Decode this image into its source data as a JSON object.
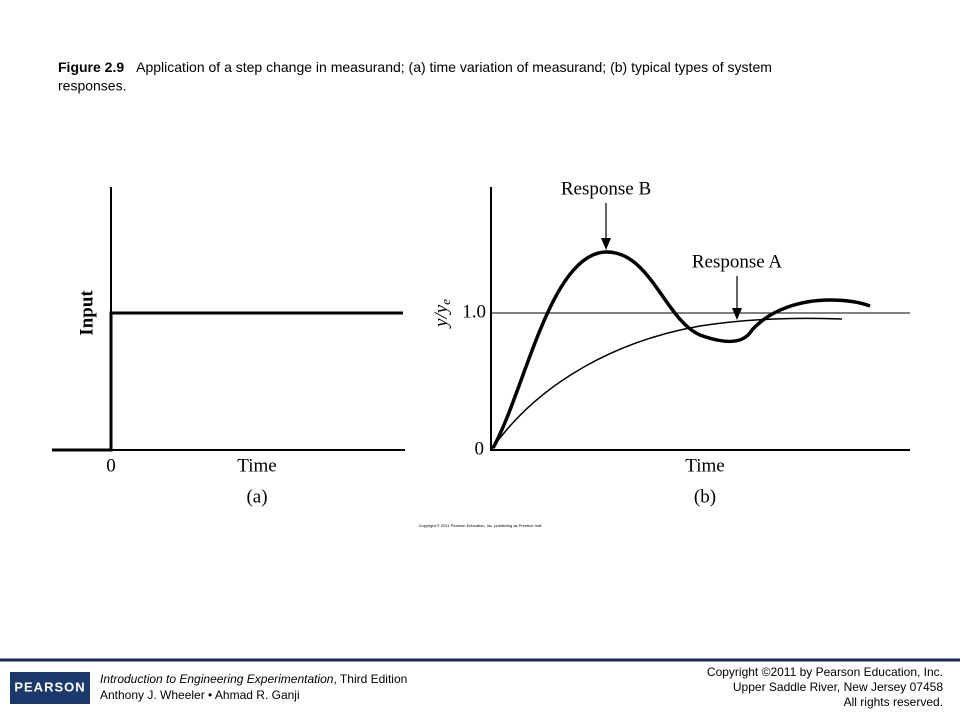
{
  "caption": {
    "label": "Figure 2.9",
    "text": "Application of a step change in measurand; (a) time variation of measurand; (b) typical types of system",
    "text_cont": "responses."
  },
  "panel_a": {
    "y_label": "Input",
    "x_origin": "0",
    "x_label": "Time",
    "tag": "(a)"
  },
  "panel_b": {
    "y_label": "y/y",
    "y_label_sub": "e",
    "y_ref": "1.0",
    "y_origin": "0",
    "x_label": "Time",
    "tag": "(b)",
    "annotations": [
      "Response B",
      "Response A"
    ]
  },
  "image_credit": "Copyright © 2011 Pearson Education, Inc. publishing as Prentice Hall",
  "footer": {
    "logo": "PEARSON",
    "book_title": "Introduction to Engineering Experimentation",
    "edition": ", Third Edition",
    "authors": "Anthony J. Wheeler • Ahmad R. Ganji",
    "copyright": [
      "Copyright ©2011 by Pearson Education, Inc.",
      "Upper Saddle River, New Jersey 07458",
      "All rights reserved."
    ]
  }
}
